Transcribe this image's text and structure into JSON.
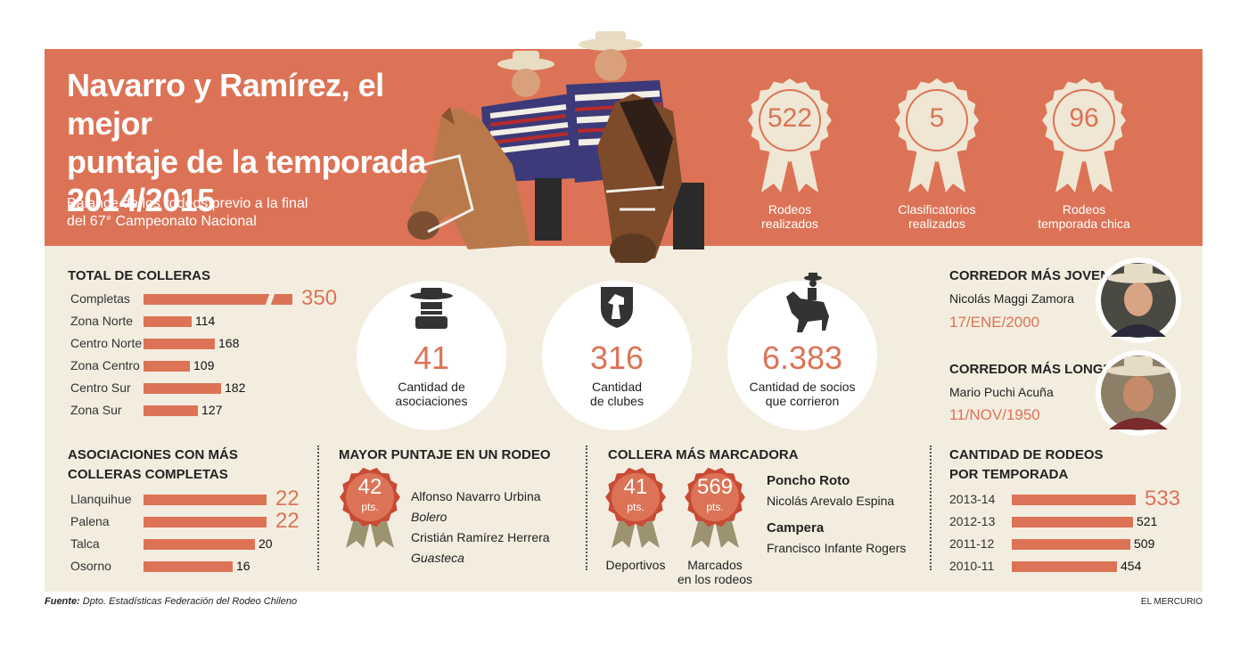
{
  "header": {
    "title_lines": [
      "Navarro y Ramírez, el mejor",
      "puntaje de la temporada",
      "2014/2015"
    ],
    "subtitle_lines": [
      "Balance de los rodeos previo a la final",
      "del 67° Campeonato Nacional"
    ],
    "stats": [
      {
        "value": "522",
        "label_lines": [
          "Rodeos",
          "realizados"
        ]
      },
      {
        "value": "5",
        "label_lines": [
          "Clasificatorios",
          "realizados"
        ]
      },
      {
        "value": "96",
        "label_lines": [
          "Rodeos",
          "temporada chica"
        ]
      }
    ]
  },
  "circles": [
    {
      "icon": "hat-person-icon",
      "value": "41",
      "label_lines": [
        "Cantidad de",
        "asociaciones"
      ]
    },
    {
      "icon": "horse-shield-icon",
      "value": "316",
      "label_lines": [
        "Cantidad",
        "de clubes"
      ]
    },
    {
      "icon": "horse-rider-icon",
      "value": "6.383",
      "label_lines": [
        "Cantidad de socios",
        "que corrieron"
      ]
    }
  ],
  "riders": {
    "youngest": {
      "title": "CORREDOR MÁS JOVEN",
      "name": "Nicolás Maggi Zamora",
      "date": "17/ENE/2000"
    },
    "oldest": {
      "title": "CORREDOR MÁS LONGEVO",
      "name": "Mario Puchi Acuña",
      "date": "11/NOV/1950"
    }
  },
  "max_score": {
    "title": "MAYOR PUNTAJE EN UN RODEO",
    "badge_value": "42",
    "badge_unit": "pts.",
    "lines": [
      "Alfonso Navarro Urbina",
      "Bolero",
      "Cristián Ramírez Herrera",
      "Guasteca"
    ]
  },
  "top_collera": {
    "title": "COLLERA MÁS MARCADORA",
    "badges": [
      {
        "value": "41",
        "unit": "pts.",
        "label_lines": [
          "Deportivos"
        ]
      },
      {
        "value": "569",
        "unit": "pts.",
        "label_lines": [
          "Marcados",
          "en los rodeos"
        ]
      }
    ],
    "entries": [
      {
        "heading": "Poncho Roto",
        "name": "Nicolás Arevalo Espina"
      },
      {
        "heading": "Campera",
        "name": "Francisco Infante Rogers"
      }
    ]
  },
  "footer": {
    "source_label": "Fuente:",
    "source_text": "Dpto. Estadísticas Federación del Rodeo Chileno",
    "brand": "EL MERCURIO"
  },
  "colors": {
    "accent": "#dc7356",
    "panel": "#f3ede0",
    "badge_red": "#c94a35",
    "ribbon": "#9c9470"
  },
  "chart_data": [
    {
      "type": "bar",
      "title": "TOTAL DE COLLERAS",
      "categories": [
        "Completas",
        "Zona Norte",
        "Centro Norte",
        "Zona Centro",
        "Centro Sur",
        "Zona Sur"
      ],
      "values": [
        350,
        114,
        168,
        109,
        182,
        127
      ],
      "highlight_first": true,
      "axis_break_first": true
    },
    {
      "type": "bar",
      "title_lines": [
        "ASOCIACIONES CON MÁS",
        "COLLERAS COMPLETAS"
      ],
      "categories": [
        "Llanquihue",
        "Palena",
        "Talca",
        "Osorno"
      ],
      "values": [
        22,
        22,
        20,
        16
      ],
      "highlight_count": 2
    },
    {
      "type": "bar",
      "title_lines": [
        "CANTIDAD DE RODEOS",
        "POR TEMPORADA"
      ],
      "categories": [
        "2013-14",
        "2012-13",
        "2011-12",
        "2010-11"
      ],
      "values": [
        533,
        521,
        509,
        454
      ],
      "highlight_first": true
    }
  ]
}
